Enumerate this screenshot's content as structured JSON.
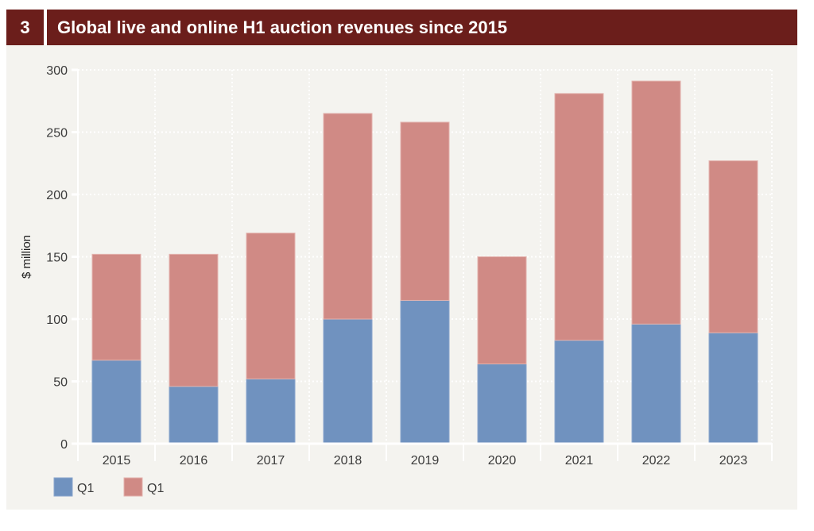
{
  "header": {
    "number": "3",
    "title": "Global live and online H1 auction revenues since 2015"
  },
  "colors": {
    "header_bg": "#6b1e1b",
    "panel_bg": "#f4f3ef",
    "series_1": "#7092bf",
    "series_2": "#d08a85"
  },
  "chart_data": {
    "type": "bar",
    "stacked": true,
    "title": "Global live and online H1 auction revenues since 2015",
    "xlabel": "",
    "ylabel": "$ million",
    "ylim": [
      0,
      300
    ],
    "yticks": [
      0,
      50,
      100,
      150,
      200,
      250,
      300
    ],
    "grid": true,
    "legend_position": "bottom-left",
    "categories": [
      "2015",
      "2016",
      "2017",
      "2018",
      "2019",
      "2020",
      "2021",
      "2022",
      "2023"
    ],
    "series": [
      {
        "name": "Q1",
        "color": "#7092bf",
        "values": [
          67,
          46,
          52,
          100,
          115,
          64,
          83,
          96,
          89
        ]
      },
      {
        "name": "Q1",
        "color": "#d08a85",
        "values": [
          85,
          106,
          117,
          165,
          143,
          86,
          198,
          195,
          138
        ]
      }
    ]
  }
}
